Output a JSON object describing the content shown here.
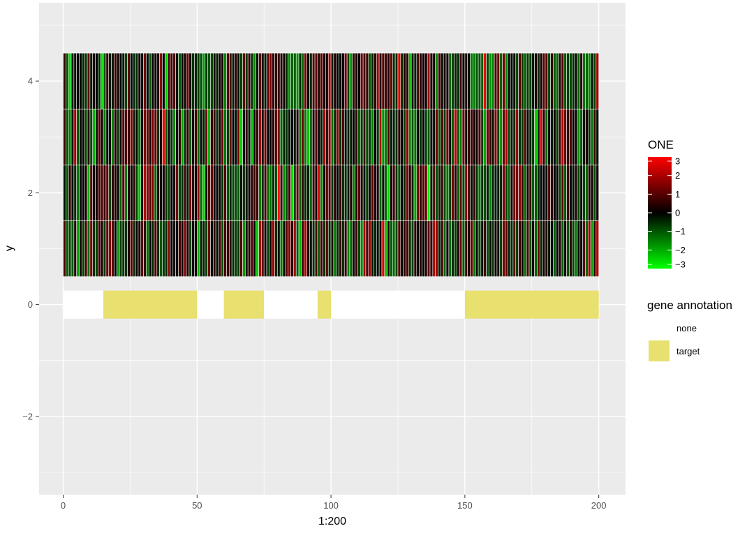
{
  "chart_data": {
    "type": "heatmap",
    "x_range": [
      -9,
      210
    ],
    "y_range": [
      -3.4,
      5.4
    ],
    "x_ticks": [
      {
        "value": 0,
        "label": "0"
      },
      {
        "value": 50,
        "label": "50"
      },
      {
        "value": 100,
        "label": "100"
      },
      {
        "value": 150,
        "label": "150"
      },
      {
        "value": 200,
        "label": "200"
      }
    ],
    "y_ticks": [
      {
        "value": -2,
        "label": "−2"
      },
      {
        "value": 0,
        "label": "0"
      },
      {
        "value": 2,
        "label": "2"
      },
      {
        "value": 4,
        "label": "4"
      }
    ],
    "x_minor": [
      25,
      75,
      125,
      175
    ],
    "y_minor": [
      -3,
      -1,
      1,
      3,
      5
    ],
    "xlabel": "1:200",
    "ylabel": "y",
    "heatmap": {
      "columns": 200,
      "x_start": 0,
      "rows": [
        1,
        2,
        3,
        4
      ],
      "value_range": [
        -3,
        3
      ],
      "colors": {
        "low": "#00ff00",
        "mid": "#000000",
        "high": "#ff0000"
      },
      "seed": 20240611
    },
    "annotation": {
      "y": 0,
      "x_range": [
        0,
        200
      ],
      "segments": [
        {
          "from": 0,
          "to": 15,
          "class": "none"
        },
        {
          "from": 15,
          "to": 50,
          "class": "target"
        },
        {
          "from": 50,
          "to": 60,
          "class": "none"
        },
        {
          "from": 60,
          "to": 75,
          "class": "target"
        },
        {
          "from": 75,
          "to": 95,
          "class": "none"
        },
        {
          "from": 95,
          "to": 100,
          "class": "target"
        },
        {
          "from": 100,
          "to": 150,
          "class": "none"
        },
        {
          "from": 150,
          "to": 200,
          "class": "target"
        }
      ],
      "colors": {
        "none": "#ffffff",
        "target": "#e8e06f"
      }
    },
    "legend_heat": {
      "title": "ONE",
      "ticks": [
        {
          "value": 3,
          "label": "3"
        },
        {
          "value": 2,
          "label": "2"
        },
        {
          "value": 1,
          "label": "1"
        },
        {
          "value": 0,
          "label": "0"
        },
        {
          "value": -1,
          "label": "−1"
        },
        {
          "value": -2,
          "label": "−2"
        },
        {
          "value": -3,
          "label": "−3"
        }
      ]
    },
    "legend_annotation": {
      "title": "gene annotation",
      "items": [
        {
          "label": "none",
          "color": "#ffffff"
        },
        {
          "label": "target",
          "color": "#e8e06f"
        }
      ]
    },
    "panel_background": "#ebebeb",
    "grid_color": "#ffffff",
    "grid": true,
    "legend_position": "right"
  }
}
